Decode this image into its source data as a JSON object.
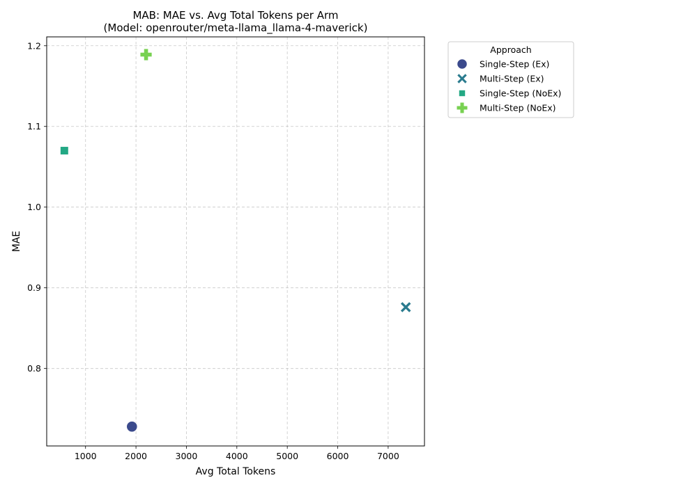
{
  "chart_data": {
    "type": "scatter",
    "title": "MAB: MAE vs. Avg Total Tokens per Arm",
    "subtitle": "(Model: openrouter/meta-llama_llama-4-maverick)",
    "xlabel": "Avg Total Tokens",
    "ylabel": "MAE",
    "xlim": [
      230,
      7720
    ],
    "ylim": [
      0.704,
      1.211
    ],
    "xticks": [
      1000,
      2000,
      3000,
      4000,
      5000,
      6000,
      7000
    ],
    "yticks": [
      0.8,
      0.9,
      1.0,
      1.1,
      1.2
    ],
    "xtick_labels": [
      "1000",
      "2000",
      "3000",
      "4000",
      "5000",
      "6000",
      "7000"
    ],
    "ytick_labels": [
      "0.8",
      "0.9",
      "1.0",
      "1.1",
      "1.2"
    ],
    "grid": true,
    "legend": {
      "title": "Approach",
      "placement": "outside-upper-right"
    },
    "series": [
      {
        "name": "Single-Step (Ex)",
        "marker": "circle",
        "color": "#3b4a8c",
        "points": [
          {
            "x": 1920,
            "y": 0.728
          }
        ]
      },
      {
        "name": "Multi-Step (Ex)",
        "marker": "x",
        "color": "#2a7b8e",
        "points": [
          {
            "x": 7350,
            "y": 0.876
          }
        ]
      },
      {
        "name": "Single-Step (NoEx)",
        "marker": "square",
        "color": "#23a884",
        "points": [
          {
            "x": 580,
            "y": 1.07
          }
        ]
      },
      {
        "name": "Multi-Step (NoEx)",
        "marker": "plus",
        "color": "#78d151",
        "points": [
          {
            "x": 2200,
            "y": 1.189
          }
        ]
      }
    ]
  }
}
